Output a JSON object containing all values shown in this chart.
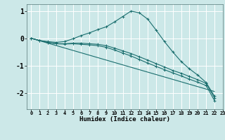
{
  "xlabel": "Humidex (Indice chaleur)",
  "ylabel": "",
  "bg_color": "#cce8e8",
  "grid_color": "#ffffff",
  "line_color": "#1a6e6e",
  "xlim": [
    -0.5,
    23
  ],
  "ylim": [
    -2.6,
    1.25
  ],
  "ytick_values": [
    -2,
    -1,
    0,
    1
  ],
  "series": [
    {
      "x": [
        0,
        1,
        2,
        3,
        4,
        5,
        6,
        7,
        8,
        9,
        10,
        11,
        12,
        13,
        14,
        15,
        16,
        17,
        18,
        19,
        20,
        21,
        22
      ],
      "y": [
        0.0,
        -0.08,
        -0.12,
        -0.15,
        -0.12,
        -0.02,
        0.1,
        0.2,
        0.32,
        0.42,
        0.6,
        0.8,
        1.0,
        0.93,
        0.7,
        0.3,
        -0.12,
        -0.5,
        -0.85,
        -1.12,
        -1.35,
        -1.62,
        -2.12
      ],
      "has_markers": true
    },
    {
      "x": [
        0,
        1,
        2,
        3,
        4,
        5,
        6,
        7,
        8,
        9,
        10,
        11,
        12,
        13,
        14,
        15,
        16,
        17,
        18,
        19,
        20,
        21,
        22
      ],
      "y": [
        0.0,
        -0.08,
        -0.15,
        -0.2,
        -0.2,
        -0.18,
        -0.18,
        -0.2,
        -0.22,
        -0.27,
        -0.36,
        -0.46,
        -0.56,
        -0.68,
        -0.8,
        -0.93,
        -1.05,
        -1.18,
        -1.28,
        -1.4,
        -1.52,
        -1.65,
        -2.18
      ],
      "has_markers": true
    },
    {
      "x": [
        0,
        1,
        2,
        3,
        4,
        5,
        6,
        7,
        8,
        9,
        10,
        11,
        12,
        13,
        14,
        15,
        16,
        17,
        18,
        19,
        20,
        21,
        22
      ],
      "y": [
        0.0,
        -0.08,
        -0.15,
        -0.2,
        -0.21,
        -0.2,
        -0.22,
        -0.24,
        -0.27,
        -0.33,
        -0.43,
        -0.54,
        -0.65,
        -0.78,
        -0.91,
        -1.03,
        -1.15,
        -1.27,
        -1.38,
        -1.5,
        -1.61,
        -1.73,
        -2.28
      ],
      "has_markers": true
    },
    {
      "x": [
        0,
        22
      ],
      "y": [
        0.0,
        -1.95
      ],
      "has_markers": false
    }
  ]
}
